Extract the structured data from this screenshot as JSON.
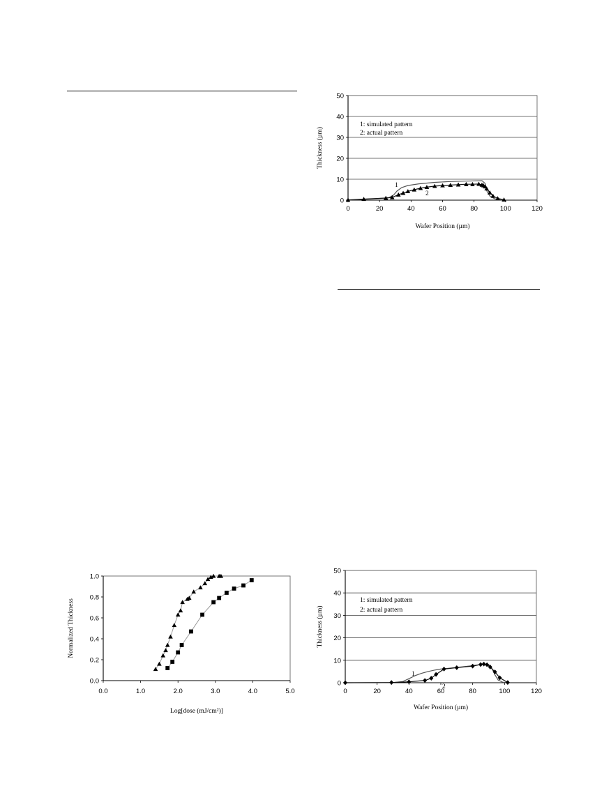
{
  "chart_data": [
    {
      "type": "line",
      "title": "",
      "xlabel": "Wafer Position (µm)",
      "ylabel": "Thickness (µm)",
      "xlim": [
        0,
        120
      ],
      "ylim": [
        0,
        50
      ],
      "xticks": [
        "0",
        "20",
        "40",
        "60",
        "80",
        "100",
        "120"
      ],
      "yticks": [
        "0",
        "10",
        "20",
        "30",
        "40",
        "50"
      ],
      "grid": "horizontal",
      "legend": [
        "1: simulated pattern",
        "2: actual pattern"
      ],
      "series": [
        {
          "name": "1",
          "marker": "none",
          "x": [
            0,
            10,
            20,
            26,
            29,
            31,
            34,
            38,
            45,
            55,
            65,
            75,
            85,
            87,
            88,
            90,
            93,
            96,
            99
          ],
          "y": [
            0.1,
            0.4,
            0.8,
            1.2,
            2.5,
            4.3,
            6.0,
            7.0,
            7.8,
            8.5,
            8.9,
            9.1,
            9.3,
            8.0,
            4.5,
            2.0,
            0.7,
            0.2,
            0.1
          ]
        },
        {
          "name": "2",
          "marker": "triangle",
          "x": [
            0,
            10,
            24,
            28,
            32,
            35,
            38,
            42,
            46,
            50,
            55,
            60,
            65,
            70,
            75,
            79,
            83,
            85,
            86,
            87,
            88,
            90,
            92,
            95,
            99
          ],
          "y": [
            0.1,
            0.5,
            1.0,
            1.3,
            2.6,
            3.4,
            4.2,
            5.0,
            5.7,
            6.2,
            6.7,
            7.0,
            7.2,
            7.4,
            7.6,
            7.6,
            7.7,
            7.3,
            7.0,
            6.5,
            5.5,
            3.6,
            2.0,
            0.8,
            0.2
          ]
        }
      ],
      "annotations": [
        "1",
        "2"
      ]
    },
    {
      "type": "scatter",
      "title": "",
      "xlabel": "Log[dose (mJ/cm²)]",
      "ylabel": "Normalized Thickness",
      "xlim": [
        0,
        5
      ],
      "ylim": [
        0,
        1
      ],
      "xticks": [
        "0.0",
        "1.0",
        "2.0",
        "3.0",
        "4.0",
        "5.0"
      ],
      "yticks": [
        "0.0",
        "0.2",
        "0.4",
        "0.6",
        "0.8",
        "1.0"
      ],
      "grid": "none",
      "series": [
        {
          "marker": "triangle",
          "x": [
            1.4,
            1.5,
            1.6,
            1.67,
            1.72,
            1.8,
            1.9,
            2.0,
            2.07,
            2.12,
            2.25,
            2.3,
            2.42,
            2.6,
            2.72,
            2.8,
            2.88,
            2.95,
            3.1,
            3.15
          ],
          "y": [
            0.11,
            0.16,
            0.24,
            0.29,
            0.34,
            0.42,
            0.53,
            0.63,
            0.67,
            0.75,
            0.78,
            0.79,
            0.85,
            0.89,
            0.93,
            0.97,
            0.99,
            1.0,
            1.0,
            1.0
          ]
        },
        {
          "marker": "square",
          "x": [
            1.72,
            1.85,
            2.0,
            2.1,
            2.35,
            2.65,
            2.95,
            3.1,
            3.3,
            3.5,
            3.75,
            3.97
          ],
          "y": [
            0.12,
            0.18,
            0.27,
            0.34,
            0.47,
            0.63,
            0.75,
            0.79,
            0.84,
            0.88,
            0.91,
            0.96
          ]
        }
      ]
    },
    {
      "type": "line",
      "title": "",
      "xlabel": "Wafer Position (µm)",
      "ylabel": "Thickness (µm)",
      "xlim": [
        0,
        120
      ],
      "ylim": [
        0,
        50
      ],
      "xticks": [
        "0",
        "20",
        "40",
        "60",
        "80",
        "100",
        "120"
      ],
      "yticks": [
        "0",
        "10",
        "20",
        "30",
        "40",
        "50"
      ],
      "grid": "horizontal",
      "legend": [
        "1: simulated pattern",
        "2: actual pattern"
      ],
      "series": [
        {
          "name": "1",
          "marker": "none",
          "x": [
            0,
            20,
            30,
            36,
            40,
            44,
            48,
            52,
            56,
            60,
            70,
            80,
            86,
            90,
            92,
            94,
            96,
            99,
            102
          ],
          "y": [
            0,
            0,
            0.1,
            0.5,
            1.8,
            3.2,
            4.2,
            5.0,
            5.6,
            6.1,
            6.8,
            7.6,
            8.2,
            8.1,
            6.5,
            3.5,
            1.2,
            0.2,
            0.1
          ]
        },
        {
          "name": "2",
          "marker": "diamond",
          "x": [
            0,
            29,
            40,
            50,
            54,
            57,
            62,
            70,
            80,
            85,
            87,
            89,
            91,
            94,
            97,
            102
          ],
          "y": [
            0,
            0.1,
            0.4,
            1.0,
            2.0,
            3.7,
            6.1,
            6.7,
            7.4,
            8.1,
            8.3,
            8.0,
            7.0,
            4.8,
            2.2,
            0.1
          ]
        }
      ],
      "annotations": [
        "1",
        "2"
      ]
    }
  ]
}
